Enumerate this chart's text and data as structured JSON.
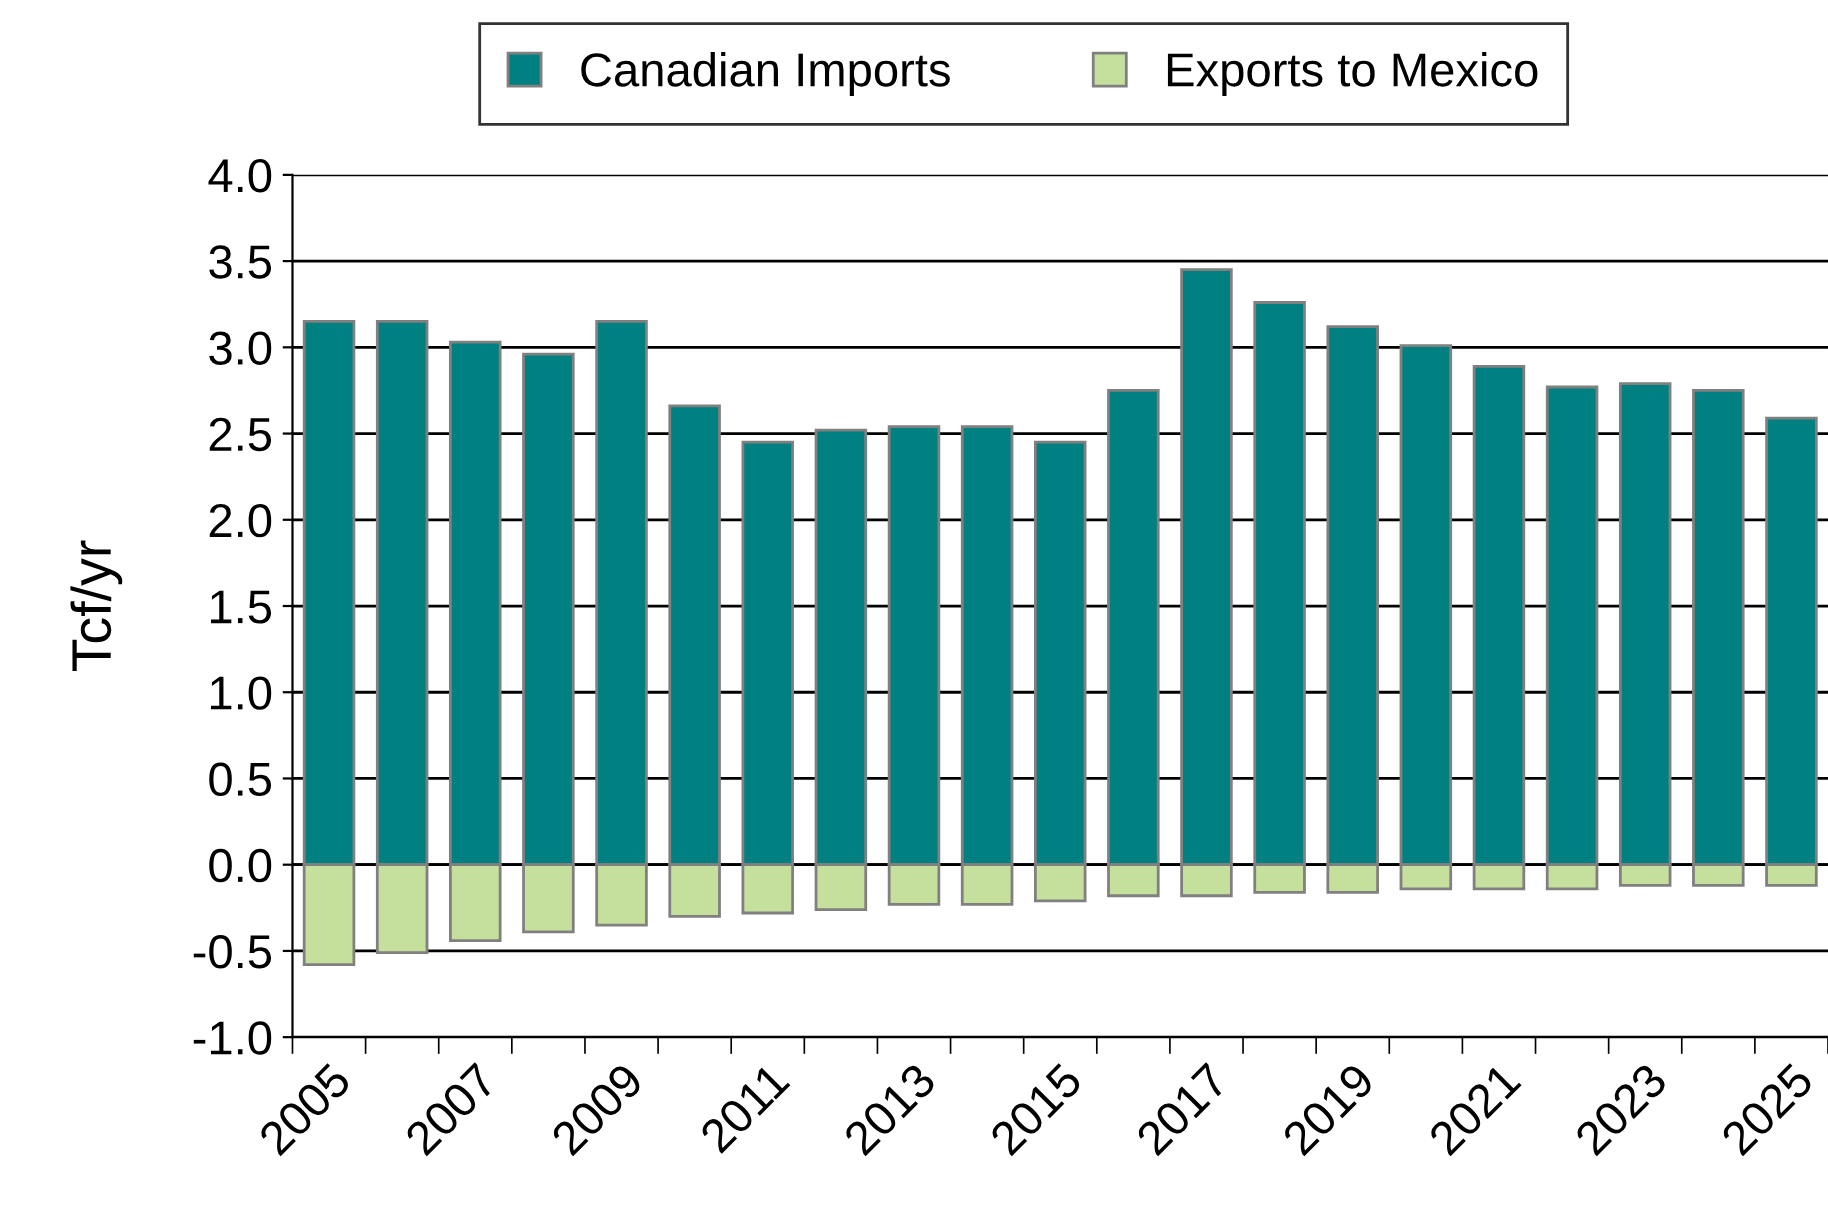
{
  "chart_data": {
    "type": "bar",
    "stacked": true,
    "ylabel": "Tcf/yr",
    "categories": [
      "2005",
      null,
      "2007",
      null,
      "2009",
      null,
      "2011",
      null,
      "2013",
      null,
      "2015",
      null,
      "2017",
      null,
      "2019",
      null,
      "2021",
      null,
      "2023",
      null,
      "2025"
    ],
    "series": [
      {
        "name": "Canadian Imports",
        "color": "#008080",
        "values": [
          3.15,
          3.15,
          3.03,
          2.96,
          3.15,
          2.66,
          2.45,
          2.52,
          2.54,
          2.54,
          2.45,
          2.75,
          3.45,
          3.26,
          3.12,
          3.01,
          2.89,
          2.77,
          2.79,
          2.75,
          2.59
        ]
      },
      {
        "name": "Exports to Mexico",
        "color": "#c4e09c",
        "values": [
          -0.58,
          -0.51,
          -0.44,
          -0.39,
          -0.35,
          -0.3,
          -0.28,
          -0.26,
          -0.23,
          -0.23,
          -0.21,
          -0.18,
          -0.18,
          -0.16,
          -0.16,
          -0.14,
          -0.14,
          -0.14,
          -0.12,
          -0.12,
          -0.12
        ]
      }
    ],
    "ylim": [
      -1.0,
      4.0
    ],
    "yticks": [
      {
        "value": -1.0,
        "label": "-1.0"
      },
      {
        "value": -0.5,
        "label": "-0.5"
      },
      {
        "value": 0.0,
        "label": "0.0"
      },
      {
        "value": 0.5,
        "label": "0.5"
      },
      {
        "value": 1.0,
        "label": "1.0"
      },
      {
        "value": 1.5,
        "label": "1.5"
      },
      {
        "value": 2.0,
        "label": "2.0"
      },
      {
        "value": 2.5,
        "label": "2.5"
      },
      {
        "value": 3.0,
        "label": "3.0"
      },
      {
        "value": 3.5,
        "label": "3.5"
      },
      {
        "value": 4.0,
        "label": "4.0"
      }
    ],
    "grid": "y",
    "legend": "top"
  }
}
